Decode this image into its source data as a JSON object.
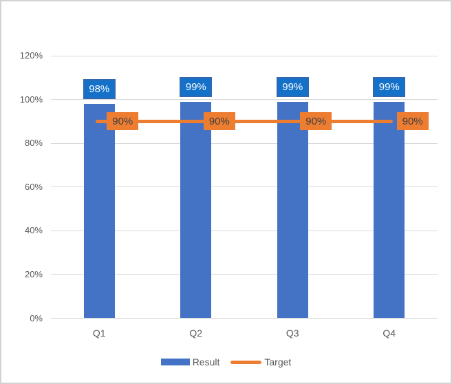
{
  "chart_data": {
    "type": "bar",
    "subtype": "bar-with-line-combo",
    "title": "",
    "xlabel": "",
    "ylabel": "",
    "categories": [
      "Q1",
      "Q2",
      "Q3",
      "Q4"
    ],
    "series": [
      {
        "name": "Result",
        "type": "bar",
        "values": [
          98,
          99,
          99,
          99
        ],
        "labels": [
          "98%",
          "99%",
          "99%",
          "99%"
        ]
      },
      {
        "name": "Target",
        "type": "line",
        "values": [
          90,
          90,
          90,
          90
        ],
        "labels": [
          "90%",
          "90%",
          "90%",
          "90%"
        ]
      }
    ],
    "ylim": [
      0,
      120
    ],
    "y_ticks": [
      {
        "value": 0,
        "label": "0%"
      },
      {
        "value": 20,
        "label": "20%"
      },
      {
        "value": 40,
        "label": "40%"
      },
      {
        "value": 60,
        "label": "60%"
      },
      {
        "value": 80,
        "label": "80%"
      },
      {
        "value": 100,
        "label": "100%"
      },
      {
        "value": 120,
        "label": "120%"
      }
    ],
    "grid": true,
    "legend_position": "bottom"
  },
  "colors": {
    "background": "#FFFFFF",
    "frame_border": "#D2D2D2",
    "gridline": "#D9D9D9",
    "axis_text": "#595959",
    "bar_fill": "#4472C4",
    "bar_label_fill": "#1471C9",
    "bar_label_border": "#3467AD",
    "bar_label_text": "#FFFFFF",
    "target_line": "#ED7D31",
    "target_label_fill": "#ED7D31",
    "target_label_text": "#3F3F3F"
  }
}
